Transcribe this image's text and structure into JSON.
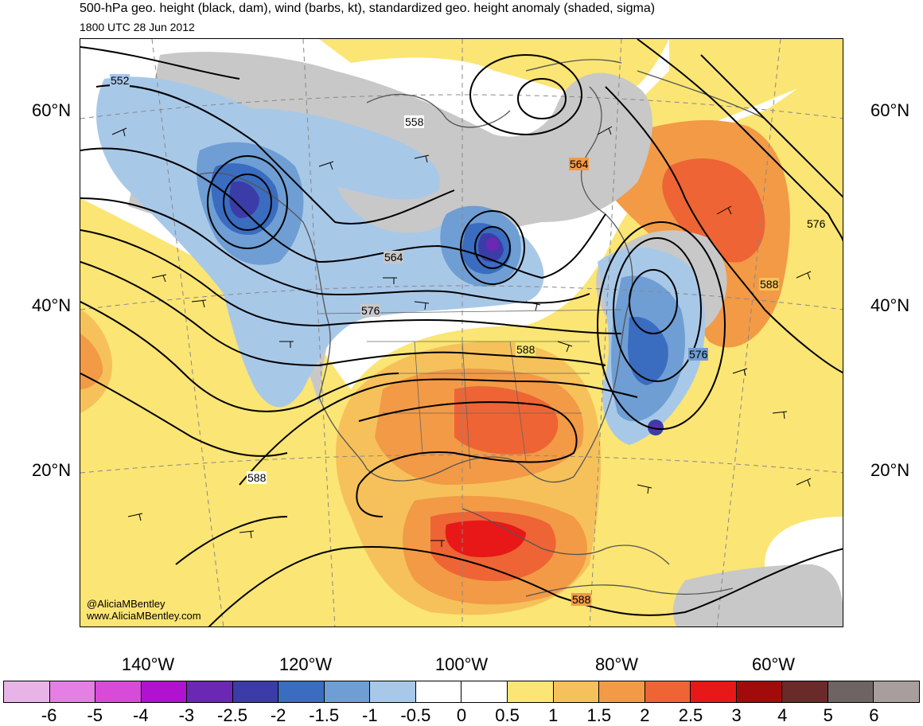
{
  "title": "500-hPa geo. height (black, dam), wind (barbs, kt), standardized geo. height anomaly (shaded, sigma)",
  "subtitle": "1800 UTC 28 Jun 2012",
  "watermark": {
    "handle": "@AliciaMBentley",
    "website": "www.AliciaMBentley.com"
  },
  "lat_labels": [
    "60°N",
    "40°N",
    "20°N"
  ],
  "lon_labels": [
    "140°W",
    "120°W",
    "100°W",
    "80°W",
    "60°W"
  ],
  "contour_labels": [
    "552",
    "558",
    "564",
    "564",
    "576",
    "576",
    "576",
    "588",
    "588",
    "588",
    "588"
  ],
  "colorbar": {
    "labels": [
      "-6",
      "-5",
      "-4",
      "-3",
      "-2.5",
      "-2",
      "-1.5",
      "-1",
      "-0.5",
      "0",
      "0.5",
      "1",
      "1.5",
      "2",
      "2.5",
      "3",
      "4",
      "5",
      "6"
    ],
    "colors": [
      "#e8b4e8",
      "#e47fe4",
      "#d84ad8",
      "#b012d0",
      "#6a28b4",
      "#3c3ca8",
      "#3a6cc0",
      "#6e9ed4",
      "#a8c8e8",
      "#ffffff",
      "#ffffff",
      "#fbe574",
      "#f6c15a",
      "#f29a46",
      "#ee6434",
      "#e81818",
      "#a00c0c",
      "#6a2a2a",
      "#6e6464",
      "#a89e9e"
    ]
  }
}
